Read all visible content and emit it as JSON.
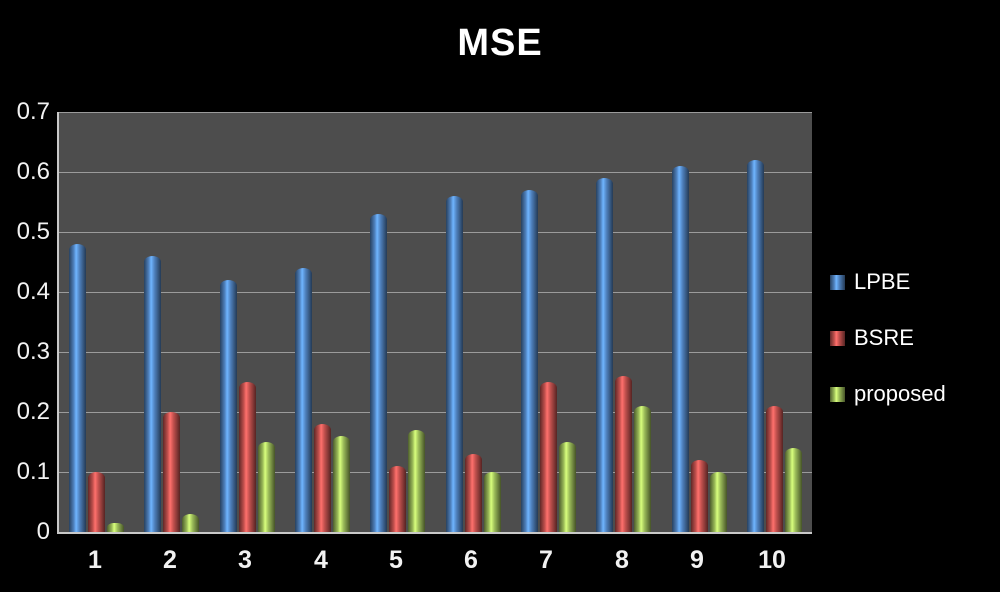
{
  "title": "MSE",
  "colors": {
    "page_background": "#000000",
    "plot_background": "#4d4d4d",
    "gridline": "#9b9b9b",
    "axis_line": "#c9c9c9",
    "text": "#ffffff",
    "lpbe_blue": "#4f81bd",
    "bsre_red": "#c0504d",
    "proposed_green": "#9bbb59"
  },
  "chart_data": {
    "type": "bar",
    "title": "MSE",
    "categories": [
      "1",
      "2",
      "3",
      "4",
      "5",
      "6",
      "7",
      "8",
      "9",
      "10"
    ],
    "series": [
      {
        "name": "LPBE",
        "color": "#4f81bd",
        "values": [
          0.48,
          0.46,
          0.42,
          0.44,
          0.53,
          0.56,
          0.57,
          0.59,
          0.61,
          0.62
        ]
      },
      {
        "name": "BSRE",
        "color": "#c0504d",
        "values": [
          0.1,
          0.2,
          0.25,
          0.18,
          0.11,
          0.13,
          0.25,
          0.26,
          0.12,
          0.21
        ]
      },
      {
        "name": "proposed",
        "color": "#9bbb59",
        "values": [
          0.015,
          0.03,
          0.15,
          0.16,
          0.17,
          0.1,
          0.15,
          0.21,
          0.1,
          0.14
        ]
      }
    ],
    "xlabel": "",
    "ylabel": "",
    "ylim": [
      0,
      0.7
    ],
    "ytick_step": 0.1,
    "ytick_labels": [
      "0.7",
      "0.6",
      "0.5",
      "0.4",
      "0.3",
      "0.2",
      "0.1",
      "0"
    ],
    "grid": true,
    "legend_position": "right",
    "legend_entries": [
      "LPBE",
      "BSRE",
      "proposed"
    ]
  }
}
